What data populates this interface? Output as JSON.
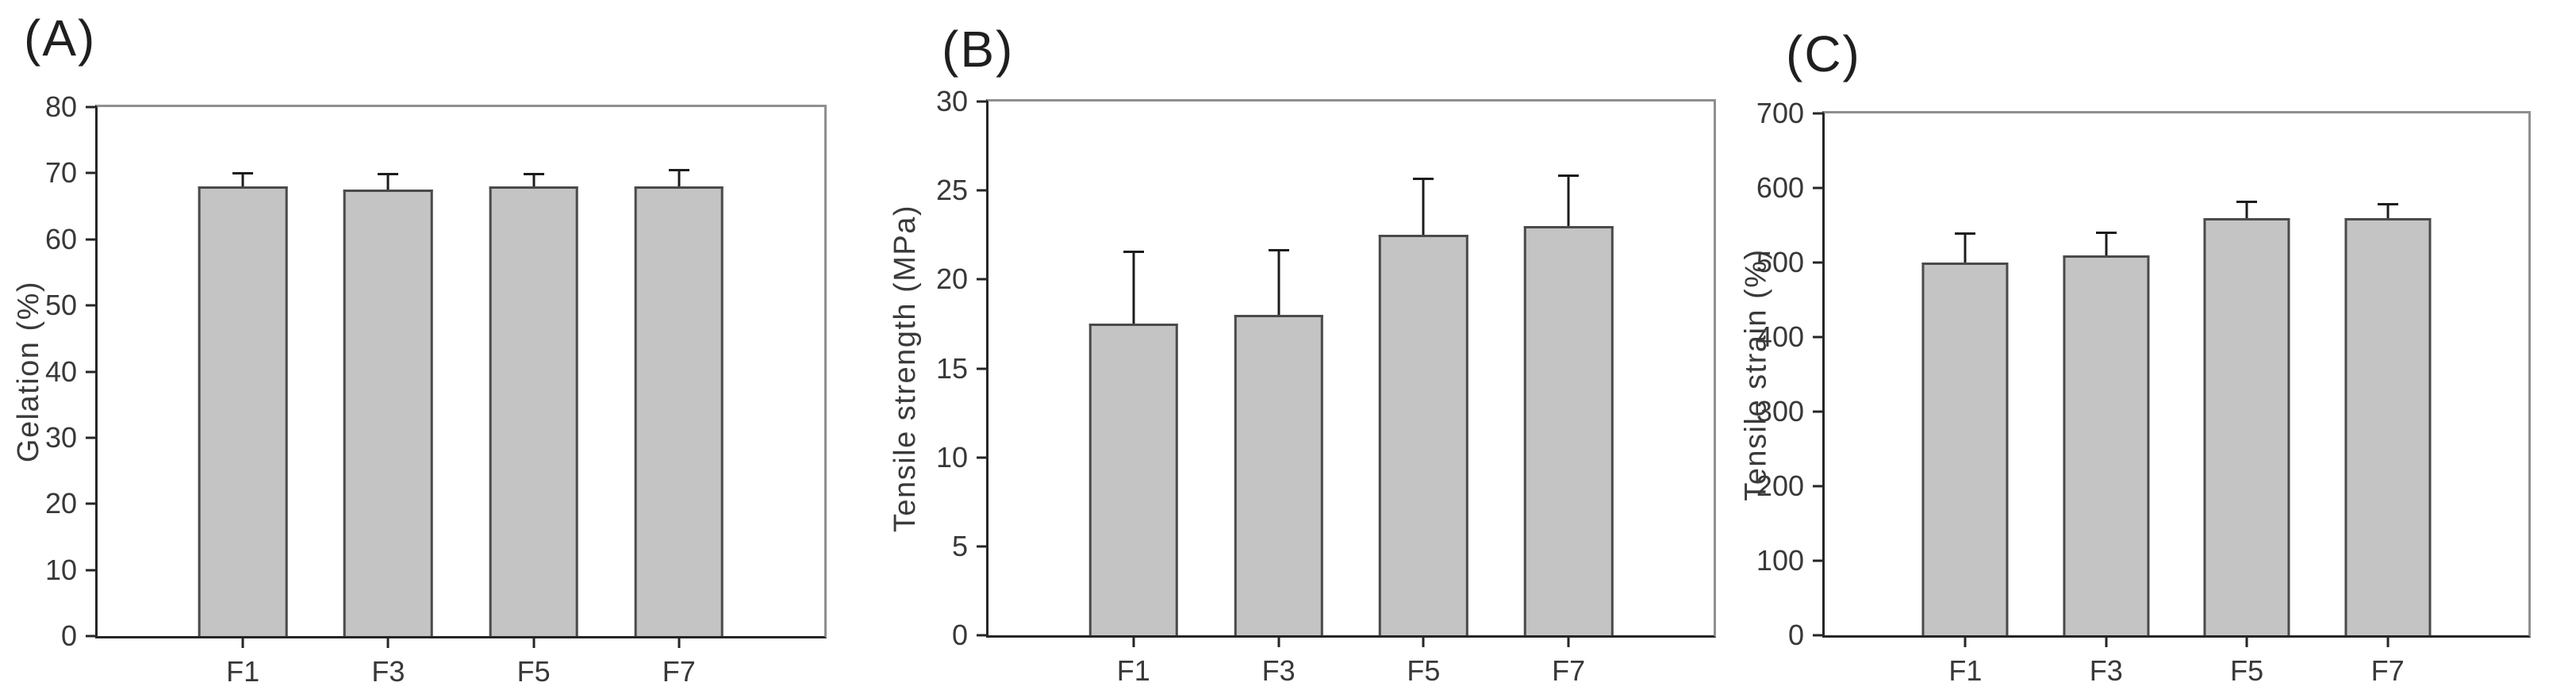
{
  "figure": {
    "background": "#ffffff",
    "colors": {
      "bar_fill": "#c4c4c4",
      "bar_border": "#4a4a4a",
      "axis": "#262626",
      "frame": "#8f8f8f",
      "error_bar": "#1c1c1c",
      "text": "#383838"
    }
  },
  "chart_data": [
    {
      "type": "bar",
      "panel_label": "(A)",
      "title": "",
      "xlabel": "",
      "ylabel": "Gelation (%)",
      "categories": [
        "F1",
        "F3",
        "F5",
        "F7"
      ],
      "values": [
        68,
        67.5,
        68,
        68
      ],
      "errors_plus": [
        2.2,
        2.5,
        2.0,
        2.6
      ],
      "ylim": [
        0,
        80
      ],
      "yticks": [
        0,
        10,
        20,
        30,
        40,
        50,
        60,
        70,
        80
      ],
      "grid": false,
      "legend": "none"
    },
    {
      "type": "bar",
      "panel_label": "(B)",
      "title": "",
      "xlabel": "",
      "ylabel": "Tensile strength (MPa)",
      "categories": [
        "F1",
        "F3",
        "F5",
        "F7"
      ],
      "values": [
        17.5,
        18,
        22.5,
        23
      ],
      "errors_plus": [
        4.1,
        3.7,
        3.2,
        2.9
      ],
      "ylim": [
        0,
        30
      ],
      "yticks": [
        0,
        5,
        10,
        15,
        20,
        25,
        30
      ],
      "grid": false,
      "legend": "none"
    },
    {
      "type": "bar",
      "panel_label": "(C)",
      "title": "",
      "xlabel": "",
      "ylabel": "Tensile strain (%)",
      "categories": [
        "F1",
        "F3",
        "F5",
        "F7"
      ],
      "values": [
        500,
        510,
        560,
        560
      ],
      "errors_plus": [
        40,
        32,
        23,
        20
      ],
      "ylim": [
        0,
        700
      ],
      "yticks": [
        0,
        100,
        200,
        300,
        400,
        500,
        600,
        700
      ],
      "grid": false,
      "legend": "none"
    }
  ]
}
